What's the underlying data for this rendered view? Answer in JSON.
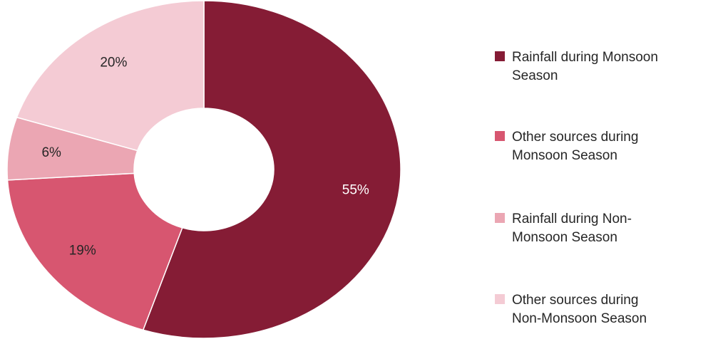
{
  "chart_data": {
    "type": "pie",
    "variant": "doughnut",
    "slices": [
      {
        "label": "Rainfall during Monsoon Season",
        "value": 55,
        "value_label": "55%",
        "color": "#851c35",
        "label_color": "#ffffff"
      },
      {
        "label": "Other sources during Monsoon Season",
        "value": 19,
        "value_label": "19%",
        "color": "#d75670",
        "label_color": "#262626"
      },
      {
        "label": "Rainfall during Non-Monsoon Season",
        "value": 6,
        "value_label": "6%",
        "color": "#eba6b3",
        "label_color": "#262626"
      },
      {
        "label": "Other sources during Non-Monsoon Season",
        "value": 20,
        "value_label": "20%",
        "color": "#f4cbd4",
        "label_color": "#262626"
      }
    ],
    "legend": {
      "position": "right",
      "entries": [
        {
          "label": "Rainfall during Monsoon\nSeason",
          "color": "#851c35"
        },
        {
          "label": "Other sources during\nMonsoon Season",
          "color": "#d75670"
        },
        {
          "label": "Rainfall during Non-\nMonsoon Season",
          "color": "#eba6b3"
        },
        {
          "label": "Other sources during\nNon-Monsoon Season",
          "color": "#f4cbd4"
        }
      ]
    }
  }
}
